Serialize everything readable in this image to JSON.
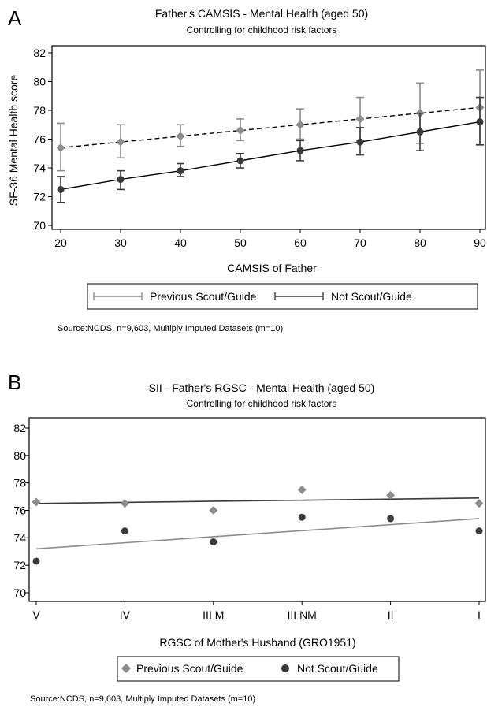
{
  "panels": [
    {
      "letter": "A",
      "title": "Father's CAMSIS - Mental Health (aged 50)",
      "subtitle": "Controlling for childhood risk factors",
      "source": "Source:NCDS, n=9,603, Multiply Imputed Datasets (m=10)"
    },
    {
      "letter": "B",
      "title": "SII - Father's RGSC - Mental Health (aged 50)",
      "subtitle": "Controlling for childhood risk factors",
      "source": "Source:NCDS, n=9,603, Multiply Imputed Datasets (m=10)"
    }
  ],
  "colors": {
    "previous": "#8c8c8c",
    "not": "#3a3a3a",
    "frame": "#000000"
  },
  "chart_data": [
    {
      "type": "line",
      "title": "Father's CAMSIS - Mental Health (aged 50)",
      "subtitle": "Controlling for childhood risk factors",
      "xlabel": "CAMSIS of Father",
      "ylabel": "SF-36 Mental Health score",
      "x": [
        20,
        30,
        40,
        50,
        60,
        70,
        80,
        90
      ],
      "xticks": [
        "20",
        "30",
        "40",
        "50",
        "60",
        "70",
        "80",
        "90"
      ],
      "yticks": [
        "70",
        "72",
        "74",
        "76",
        "78",
        "80",
        "82"
      ],
      "xlim": [
        20,
        90
      ],
      "ylim": [
        70,
        82
      ],
      "legend_position": "bottom",
      "series": [
        {
          "name": "Previous Scout/Guide",
          "style": "dashed",
          "marker": "diamond",
          "values": [
            75.4,
            75.8,
            76.2,
            76.6,
            77.0,
            77.4,
            77.8,
            78.2
          ],
          "ci_low": [
            73.8,
            74.7,
            75.5,
            75.9,
            76.0,
            75.9,
            75.7,
            75.6
          ],
          "ci_high": [
            77.1,
            77.0,
            77.0,
            77.4,
            78.1,
            78.9,
            79.9,
            80.8
          ]
        },
        {
          "name": "Not Scout/Guide",
          "style": "solid",
          "marker": "circle",
          "values": [
            72.5,
            73.2,
            73.8,
            74.5,
            75.2,
            75.8,
            76.5,
            77.2
          ],
          "ci_low": [
            71.6,
            72.5,
            73.4,
            74.0,
            74.5,
            74.9,
            75.2,
            75.6
          ],
          "ci_high": [
            73.4,
            73.8,
            74.3,
            75.0,
            75.9,
            76.8,
            77.8,
            78.9
          ]
        }
      ]
    },
    {
      "type": "scatter",
      "title": "SII - Father's RGSC - Mental Health (aged 50)",
      "subtitle": "Controlling for childhood risk factors",
      "xlabel": "RGSC of Mother's Husband (GRO1951)",
      "ylabel": "",
      "categories": [
        "V",
        "IV",
        "III M",
        "III NM",
        "II",
        "I"
      ],
      "yticks": [
        "70",
        "72",
        "74",
        "76",
        "78",
        "80",
        "82"
      ],
      "ylim": [
        70,
        82
      ],
      "legend_position": "bottom",
      "series": [
        {
          "name": "Previous Scout/Guide",
          "marker": "diamond",
          "values": [
            76.6,
            76.5,
            76.0,
            77.5,
            77.1,
            76.5
          ],
          "fit": [
            76.5,
            76.9
          ]
        },
        {
          "name": "Not Scout/Guide",
          "marker": "circle",
          "values": [
            72.3,
            74.5,
            73.7,
            75.5,
            75.4,
            74.5
          ],
          "fit": [
            73.2,
            75.4
          ]
        }
      ]
    }
  ]
}
